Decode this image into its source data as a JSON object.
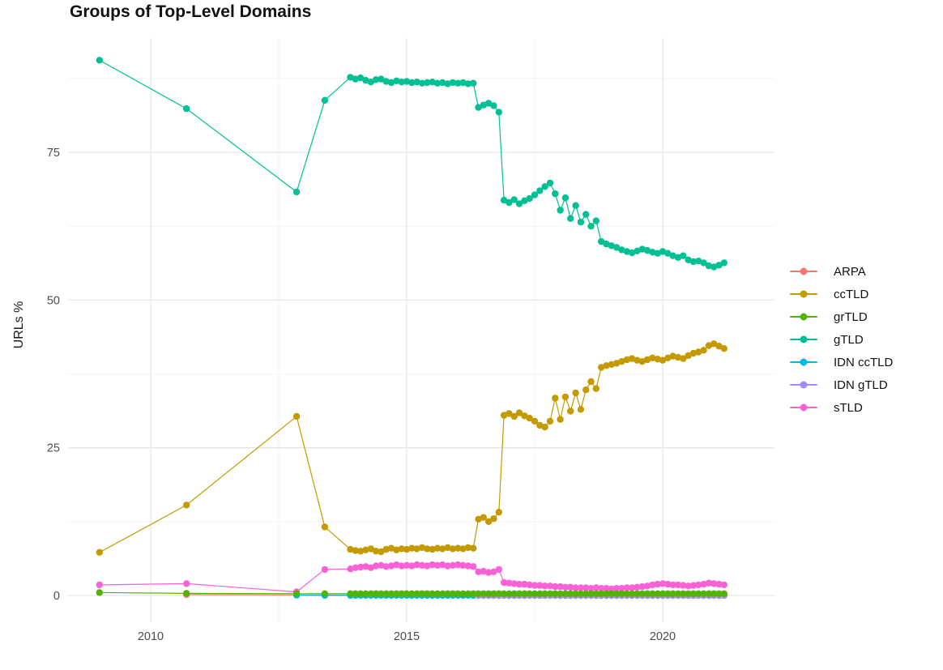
{
  "title": "Groups of Top-Level Domains",
  "chart_data": {
    "type": "line",
    "title": "Groups of Top-Level Domains",
    "xlabel": "",
    "ylabel": "URLs %",
    "grid": "on",
    "legend_position": "right",
    "xlim": [
      2008.4,
      2022.2
    ],
    "ylim": [
      -1.5,
      94
    ],
    "x_axis": {
      "tick_values": [
        2010,
        2015,
        2020
      ],
      "tick_labels": [
        "2010",
        "2015",
        "2020"
      ],
      "minor_ticks": [
        2012.5,
        2017.5
      ]
    },
    "y_axis": {
      "tick_values": [
        0,
        25,
        50,
        75
      ],
      "tick_labels": [
        "0",
        "25",
        "50",
        "75"
      ],
      "minor_ticks": [
        12.5,
        37.5,
        62.5,
        87.5
      ]
    },
    "draw_order": [
      0,
      4,
      5,
      6,
      2,
      1,
      3
    ],
    "series": [
      {
        "name": "ARPA",
        "color": "#F8766D",
        "early": [
          [
            2010.7,
            0.15
          ],
          [
            2012.85,
            0.1
          ],
          [
            2013.4,
            0.1
          ]
        ],
        "dense": {
          "start": 2013.9,
          "step": 0.1,
          "repeat": {
            "value": 0.1,
            "count": 74
          }
        }
      },
      {
        "name": "ccTLD",
        "color": "#C49A00",
        "early": [
          [
            2009.0,
            7.3
          ],
          [
            2010.7,
            15.3
          ],
          [
            2012.85,
            30.3
          ],
          [
            2013.4,
            11.6
          ]
        ],
        "dense": {
          "start": 2013.9,
          "step": 0.1,
          "values": [
            7.8,
            7.6,
            7.5,
            7.7,
            7.9,
            7.5,
            7.4,
            7.8,
            8.0,
            7.7,
            7.9,
            7.8,
            8.0,
            7.9,
            8.1,
            7.9,
            7.8,
            8.0,
            7.9,
            8.1,
            7.9,
            8.0,
            7.9,
            8.1,
            8.0,
            12.9,
            13.2,
            12.5,
            13.0,
            14.1,
            30.5,
            30.8,
            30.3,
            30.9,
            30.4,
            30.0,
            29.5,
            28.8,
            28.5,
            29.5,
            33.4,
            29.8,
            33.6,
            31.2,
            34.3,
            31.5,
            34.8,
            36.2,
            35.0,
            38.6,
            38.9,
            39.1,
            39.3,
            39.6,
            39.9,
            40.1,
            39.8,
            39.6,
            39.9,
            40.2,
            40.0,
            39.8,
            40.2,
            40.5,
            40.3,
            40.1,
            40.6,
            41.0,
            41.2,
            41.5,
            42.3,
            42.6,
            42.2,
            41.8
          ]
        }
      },
      {
        "name": "grTLD",
        "color": "#53B400",
        "early": [
          [
            2009.0,
            0.5
          ],
          [
            2010.7,
            0.35
          ],
          [
            2012.85,
            0.3
          ],
          [
            2013.4,
            0.3
          ]
        ],
        "dense": {
          "start": 2013.9,
          "step": 0.1,
          "repeat": {
            "value": 0.3,
            "count": 74
          }
        }
      },
      {
        "name": "gTLD",
        "color": "#00C094",
        "early": [
          [
            2009.0,
            90.6
          ],
          [
            2010.7,
            82.4
          ],
          [
            2012.85,
            68.3
          ],
          [
            2013.4,
            83.8
          ]
        ],
        "dense": {
          "start": 2013.9,
          "step": 0.1,
          "values": [
            87.7,
            87.4,
            87.6,
            87.2,
            86.9,
            87.3,
            87.4,
            87.0,
            86.8,
            87.1,
            86.9,
            87.0,
            86.8,
            86.9,
            86.7,
            86.8,
            86.9,
            86.7,
            86.8,
            86.6,
            86.8,
            86.7,
            86.8,
            86.6,
            86.7,
            82.6,
            83.0,
            83.3,
            82.9,
            81.8,
            66.9,
            66.5,
            67.0,
            66.3,
            66.8,
            67.2,
            67.8,
            68.5,
            69.2,
            69.8,
            68.0,
            65.2,
            67.3,
            63.8,
            66.0,
            63.2,
            64.5,
            62.5,
            63.4,
            59.9,
            59.5,
            59.2,
            58.9,
            58.5,
            58.2,
            58.0,
            58.3,
            58.6,
            58.4,
            58.1,
            57.9,
            58.2,
            57.9,
            57.5,
            57.2,
            57.5,
            56.8,
            56.5,
            56.6,
            56.3,
            55.8,
            55.6,
            55.9,
            56.3
          ]
        }
      },
      {
        "name": "IDN ccTLD",
        "color": "#00B6EB",
        "early": [
          [
            2012.85,
            0.05
          ],
          [
            2013.4,
            0.02
          ]
        ],
        "dense": {
          "start": 2013.9,
          "step": 0.1,
          "repeat": {
            "value": 0.02,
            "count": 74
          }
        }
      },
      {
        "name": "IDN gTLD",
        "color": "#A58AFF",
        "early": [],
        "dense": {
          "start": 2016.4,
          "step": 0.1,
          "repeat": {
            "value": 0.0,
            "count": 49
          }
        }
      },
      {
        "name": "sTLD",
        "color": "#FB61D7",
        "early": [
          [
            2009.0,
            1.8
          ],
          [
            2010.7,
            2.0
          ],
          [
            2012.85,
            0.6
          ],
          [
            2013.4,
            4.4
          ]
        ],
        "dense": {
          "start": 2013.9,
          "step": 0.1,
          "values": [
            4.5,
            4.7,
            4.8,
            4.9,
            4.7,
            5.0,
            5.1,
            4.9,
            5.0,
            5.2,
            5.0,
            5.1,
            5.0,
            5.2,
            5.1,
            5.0,
            5.2,
            5.1,
            5.2,
            5.0,
            5.1,
            5.2,
            5.1,
            5.0,
            4.9,
            4.0,
            4.1,
            3.9,
            4.0,
            4.4,
            2.2,
            2.1,
            2.0,
            1.9,
            1.9,
            1.8,
            1.7,
            1.7,
            1.6,
            1.6,
            1.5,
            1.5,
            1.4,
            1.4,
            1.3,
            1.3,
            1.3,
            1.2,
            1.3,
            1.2,
            1.2,
            1.1,
            1.2,
            1.2,
            1.3,
            1.3,
            1.4,
            1.5,
            1.6,
            1.8,
            1.9,
            2.0,
            1.9,
            1.8,
            1.8,
            1.7,
            1.6,
            1.7,
            1.8,
            1.9,
            2.1,
            2.0,
            1.9,
            1.8
          ]
        }
      }
    ]
  },
  "style": {
    "grid_major_color": "#E6E6E6",
    "grid_minor_color": "#F2F2F2",
    "tick_label_color": "#4D4D4D",
    "background": "#FFFFFF"
  }
}
